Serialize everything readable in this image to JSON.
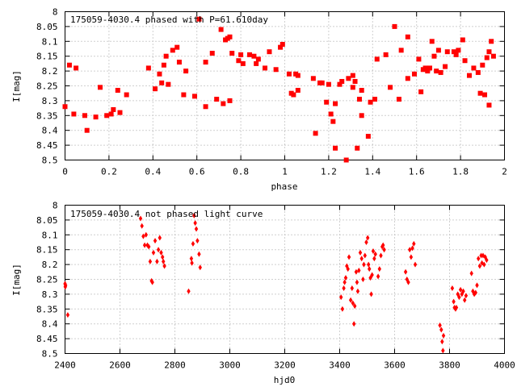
{
  "colors": {
    "points": "#ff0000",
    "axes": "#000000",
    "grid": "#a0a0a0",
    "background": "#ffffff"
  },
  "chart_data": [
    {
      "type": "scatter",
      "title": "175059-4030.4 phased with P=61.610day",
      "xlabel": "phase",
      "ylabel": "I[mag]",
      "xlim": [
        0,
        2
      ],
      "ylim": [
        8.5,
        8.0
      ],
      "y_inverted": true,
      "grid": true,
      "x_ticks": [
        "0",
        "0.2",
        "0.4",
        "0.6",
        "0.8",
        "1",
        "1.2",
        "1.4",
        "1.6",
        "1.8",
        "2"
      ],
      "y_ticks": [
        "8",
        "8.05",
        "8.1",
        "8.15",
        "8.2",
        "8.25",
        "8.3",
        "8.35",
        "8.4",
        "8.45",
        "8.5"
      ],
      "marker": "square",
      "points": [
        [
          0.0,
          8.32
        ],
        [
          0.02,
          8.18
        ],
        [
          0.04,
          8.345
        ],
        [
          0.05,
          8.19
        ],
        [
          0.09,
          8.35
        ],
        [
          0.1,
          8.4
        ],
        [
          0.14,
          8.355
        ],
        [
          0.16,
          8.255
        ],
        [
          0.19,
          8.35
        ],
        [
          0.21,
          8.345
        ],
        [
          0.22,
          8.33
        ],
        [
          0.24,
          8.265
        ],
        [
          0.25,
          8.34
        ],
        [
          0.28,
          8.28
        ],
        [
          0.38,
          8.19
        ],
        [
          0.41,
          8.26
        ],
        [
          0.43,
          8.21
        ],
        [
          0.44,
          8.24
        ],
        [
          0.45,
          8.18
        ],
        [
          0.46,
          8.15
        ],
        [
          0.47,
          8.245
        ],
        [
          0.49,
          8.13
        ],
        [
          0.51,
          8.12
        ],
        [
          0.52,
          8.17
        ],
        [
          0.54,
          8.28
        ],
        [
          0.55,
          8.2
        ],
        [
          0.59,
          8.285
        ],
        [
          0.61,
          8.025
        ],
        [
          0.64,
          8.32
        ],
        [
          0.64,
          8.17
        ],
        [
          0.67,
          8.14
        ],
        [
          0.69,
          8.295
        ],
        [
          0.71,
          8.06
        ],
        [
          0.72,
          8.31
        ],
        [
          0.73,
          8.095
        ],
        [
          0.74,
          8.09
        ],
        [
          0.75,
          8.085
        ],
        [
          0.75,
          8.3
        ],
        [
          0.76,
          8.14
        ],
        [
          0.79,
          8.165
        ],
        [
          0.8,
          8.145
        ],
        [
          0.81,
          8.175
        ],
        [
          0.84,
          8.145
        ],
        [
          0.86,
          8.15
        ],
        [
          0.87,
          8.175
        ],
        [
          0.88,
          8.16
        ],
        [
          0.91,
          8.19
        ],
        [
          0.93,
          8.135
        ],
        [
          0.96,
          8.195
        ],
        [
          0.98,
          8.12
        ],
        [
          0.99,
          8.11
        ],
        [
          1.02,
          8.21
        ],
        [
          1.03,
          8.275
        ],
        [
          1.04,
          8.28
        ],
        [
          1.05,
          8.21
        ],
        [
          1.06,
          8.265
        ],
        [
          1.06,
          8.215
        ],
        [
          1.13,
          8.225
        ],
        [
          1.14,
          8.41
        ],
        [
          1.16,
          8.24
        ],
        [
          1.17,
          8.24
        ],
        [
          1.19,
          8.305
        ],
        [
          1.2,
          8.245
        ],
        [
          1.21,
          8.345
        ],
        [
          1.22,
          8.37
        ],
        [
          1.23,
          8.31
        ],
        [
          1.23,
          8.46
        ],
        [
          1.25,
          8.245
        ],
        [
          1.26,
          8.235
        ],
        [
          1.28,
          8.5
        ],
        [
          1.29,
          8.225
        ],
        [
          1.31,
          8.255
        ],
        [
          1.31,
          8.215
        ],
        [
          1.32,
          8.235
        ],
        [
          1.33,
          8.46
        ],
        [
          1.34,
          8.295
        ],
        [
          1.35,
          8.265
        ],
        [
          1.35,
          8.35
        ],
        [
          1.38,
          8.42
        ],
        [
          1.39,
          8.305
        ],
        [
          1.41,
          8.295
        ],
        [
          1.42,
          8.16
        ],
        [
          1.46,
          8.145
        ],
        [
          1.48,
          8.255
        ],
        [
          1.5,
          8.05
        ],
        [
          1.52,
          8.295
        ],
        [
          1.53,
          8.13
        ],
        [
          1.56,
          8.225
        ],
        [
          1.56,
          8.085
        ],
        [
          1.59,
          8.21
        ],
        [
          1.61,
          8.16
        ],
        [
          1.62,
          8.27
        ],
        [
          1.63,
          8.195
        ],
        [
          1.64,
          8.19
        ],
        [
          1.65,
          8.2
        ],
        [
          1.66,
          8.19
        ],
        [
          1.67,
          8.1
        ],
        [
          1.68,
          8.15
        ],
        [
          1.69,
          8.2
        ],
        [
          1.7,
          8.13
        ],
        [
          1.71,
          8.205
        ],
        [
          1.73,
          8.185
        ],
        [
          1.74,
          8.135
        ],
        [
          1.77,
          8.135
        ],
        [
          1.78,
          8.145
        ],
        [
          1.79,
          8.13
        ],
        [
          1.81,
          8.095
        ],
        [
          1.82,
          8.165
        ],
        [
          1.84,
          8.215
        ],
        [
          1.86,
          8.19
        ],
        [
          1.88,
          8.205
        ],
        [
          1.89,
          8.275
        ],
        [
          1.9,
          8.18
        ],
        [
          1.91,
          8.28
        ],
        [
          1.92,
          8.155
        ],
        [
          1.93,
          8.135
        ],
        [
          1.93,
          8.315
        ],
        [
          1.94,
          8.1
        ],
        [
          1.95,
          8.15
        ]
      ]
    },
    {
      "type": "scatter",
      "title": "175059-4030.4 not phased light curve",
      "xlabel": "hjd0",
      "ylabel": "I[mag]",
      "xlim": [
        2400,
        4000
      ],
      "ylim": [
        8.5,
        8.0
      ],
      "y_inverted": true,
      "grid": true,
      "x_ticks": [
        "2400",
        "2600",
        "2800",
        "3000",
        "3200",
        "3400",
        "3600",
        "3800",
        "4000"
      ],
      "y_ticks": [
        "8",
        "8.05",
        "8.1",
        "8.15",
        "8.2",
        "8.25",
        "8.3",
        "8.35",
        "8.4",
        "8.45",
        "8.5"
      ],
      "marker": "diamond",
      "points": [
        [
          2400,
          8.265
        ],
        [
          2401,
          8.275
        ],
        [
          2402,
          8.27
        ],
        [
          2410,
          8.37
        ],
        [
          2675,
          8.045
        ],
        [
          2680,
          8.07
        ],
        [
          2685,
          8.105
        ],
        [
          2690,
          8.135
        ],
        [
          2695,
          8.1
        ],
        [
          2700,
          8.135
        ],
        [
          2705,
          8.14
        ],
        [
          2710,
          8.19
        ],
        [
          2715,
          8.255
        ],
        [
          2718,
          8.26
        ],
        [
          2722,
          8.16
        ],
        [
          2728,
          8.12
        ],
        [
          2735,
          8.19
        ],
        [
          2740,
          8.15
        ],
        [
          2745,
          8.11
        ],
        [
          2750,
          8.16
        ],
        [
          2755,
          8.175
        ],
        [
          2758,
          8.19
        ],
        [
          2762,
          8.205
        ],
        [
          2850,
          8.29
        ],
        [
          2860,
          8.18
        ],
        [
          2862,
          8.195
        ],
        [
          2866,
          8.13
        ],
        [
          2870,
          8.035
        ],
        [
          2874,
          8.06
        ],
        [
          2878,
          8.08
        ],
        [
          2882,
          8.12
        ],
        [
          2888,
          8.165
        ],
        [
          2892,
          8.21
        ],
        [
          3405,
          8.31
        ],
        [
          3410,
          8.35
        ],
        [
          3415,
          8.28
        ],
        [
          3418,
          8.26
        ],
        [
          3422,
          8.245
        ],
        [
          3426,
          8.205
        ],
        [
          3430,
          8.215
        ],
        [
          3434,
          8.175
        ],
        [
          3440,
          8.32
        ],
        [
          3445,
          8.28
        ],
        [
          3448,
          8.33
        ],
        [
          3452,
          8.4
        ],
        [
          3455,
          8.34
        ],
        [
          3460,
          8.225
        ],
        [
          3463,
          8.26
        ],
        [
          3466,
          8.29
        ],
        [
          3470,
          8.22
        ],
        [
          3475,
          8.16
        ],
        [
          3480,
          8.18
        ],
        [
          3485,
          8.25
        ],
        [
          3488,
          8.2
        ],
        [
          3492,
          8.17
        ],
        [
          3497,
          8.125
        ],
        [
          3502,
          8.11
        ],
        [
          3505,
          8.2
        ],
        [
          3508,
          8.215
        ],
        [
          3512,
          8.245
        ],
        [
          3515,
          8.3
        ],
        [
          3518,
          8.235
        ],
        [
          3522,
          8.155
        ],
        [
          3526,
          8.18
        ],
        [
          3530,
          8.165
        ],
        [
          3540,
          8.24
        ],
        [
          3545,
          8.215
        ],
        [
          3550,
          8.17
        ],
        [
          3555,
          8.14
        ],
        [
          3558,
          8.135
        ],
        [
          3562,
          8.15
        ],
        [
          3640,
          8.225
        ],
        [
          3645,
          8.25
        ],
        [
          3650,
          8.26
        ],
        [
          3655,
          8.15
        ],
        [
          3660,
          8.175
        ],
        [
          3665,
          8.145
        ],
        [
          3670,
          8.13
        ],
        [
          3675,
          8.2
        ],
        [
          3765,
          8.405
        ],
        [
          3770,
          8.42
        ],
        [
          3773,
          8.46
        ],
        [
          3776,
          8.49
        ],
        [
          3778,
          8.44
        ],
        [
          3810,
          8.28
        ],
        [
          3815,
          8.325
        ],
        [
          3818,
          8.345
        ],
        [
          3822,
          8.35
        ],
        [
          3825,
          8.345
        ],
        [
          3830,
          8.3
        ],
        [
          3835,
          8.31
        ],
        [
          3840,
          8.285
        ],
        [
          3845,
          8.3
        ],
        [
          3850,
          8.29
        ],
        [
          3855,
          8.32
        ],
        [
          3860,
          8.305
        ],
        [
          3880,
          8.23
        ],
        [
          3885,
          8.29
        ],
        [
          3890,
          8.3
        ],
        [
          3895,
          8.295
        ],
        [
          3900,
          8.27
        ],
        [
          3905,
          8.18
        ],
        [
          3910,
          8.205
        ],
        [
          3915,
          8.17
        ],
        [
          3918,
          8.195
        ],
        [
          3922,
          8.17
        ],
        [
          3926,
          8.2
        ],
        [
          3930,
          8.175
        ],
        [
          3935,
          8.185
        ]
      ]
    }
  ]
}
